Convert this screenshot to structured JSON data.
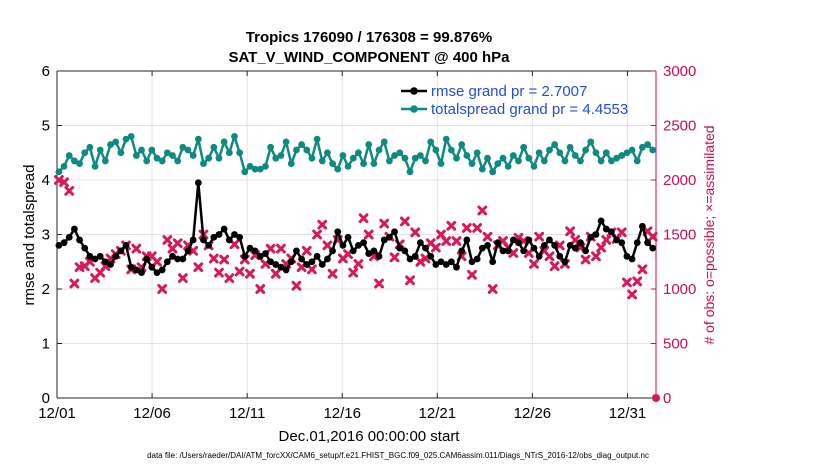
{
  "chart_data": {
    "type": "line",
    "title": "Tropics 176090 / 176308 = 99.876%",
    "subtitle": "SAT_V_WIND_COMPONENT @ 400 hPa",
    "xlabel": "Dec.01,2016 00:00:00 start",
    "ylabel": "rmse and totalspread",
    "ylabel_right": "# of obs: o=possible; ×=assimilated",
    "footer": "data file: /Users/raeder/DAI/ATM_forcXX/CAM6_setup/f.e21.FHIST_BGC.f09_025.CAM6assim.011/Diags_NTrS_2016-12/obs_diag_output.nc",
    "xlim": [
      0,
      31.5
    ],
    "ylim": [
      0,
      6
    ],
    "ylim_right": [
      0,
      3000
    ],
    "grid": true,
    "x_tick_positions": [
      0,
      5,
      10,
      15,
      20,
      25,
      30
    ],
    "x_tick_labels": [
      "12/01",
      "12/06",
      "12/11",
      "12/16",
      "12/21",
      "12/26",
      "12/31"
    ],
    "y_ticks": [
      "0",
      "1",
      "2",
      "3",
      "4",
      "5",
      "6"
    ],
    "y_ticks_right": [
      "0",
      "500",
      "1000",
      "1500",
      "2000",
      "2500",
      "3000"
    ],
    "legend": [
      {
        "label": "rmse grand pr = 2.7007",
        "color": "#000000"
      },
      {
        "label": "totalspread grand pr = 4.4553",
        "color": "#0f8a80"
      }
    ],
    "series": [
      {
        "name": "rmse",
        "color": "#000000",
        "values": [
          2.8,
          2.85,
          2.95,
          3.1,
          2.9,
          2.75,
          2.6,
          2.55,
          2.6,
          2.5,
          2.45,
          2.6,
          2.7,
          2.8,
          2.4,
          2.35,
          2.3,
          2.55,
          2.4,
          2.3,
          2.35,
          2.5,
          2.6,
          2.55,
          2.55,
          2.7,
          2.9,
          3.95,
          2.9,
          2.8,
          2.95,
          3.0,
          3.1,
          2.9,
          3.0,
          2.95,
          2.6,
          2.75,
          2.7,
          2.6,
          2.65,
          2.5,
          2.45,
          2.4,
          2.35,
          2.5,
          2.7,
          2.55,
          2.45,
          2.5,
          2.6,
          2.45,
          2.55,
          2.7,
          3.05,
          2.8,
          2.95,
          2.7,
          2.8,
          2.85,
          2.65,
          2.7,
          2.6,
          2.9,
          2.95,
          3.05,
          2.75,
          2.7,
          2.55,
          2.6,
          2.85,
          2.75,
          2.6,
          2.45,
          2.5,
          2.45,
          2.5,
          2.4,
          2.7,
          2.9,
          2.5,
          2.55,
          2.75,
          2.8,
          2.5,
          2.85,
          2.7,
          2.7,
          2.9,
          2.85,
          2.7,
          2.9,
          2.75,
          2.6,
          2.8,
          2.9,
          2.8,
          2.6,
          2.5,
          2.8,
          2.75,
          2.85,
          2.7,
          2.95,
          3.0,
          3.25,
          3.1,
          3.05,
          2.9,
          2.85,
          2.6,
          2.55,
          2.85,
          3.15,
          2.85,
          2.75
        ]
      },
      {
        "name": "totalspread",
        "color": "#0f8a80",
        "values": [
          4.15,
          4.25,
          4.45,
          4.35,
          4.3,
          4.5,
          4.6,
          4.25,
          4.55,
          4.35,
          4.65,
          4.7,
          4.5,
          4.75,
          4.8,
          4.45,
          4.55,
          4.35,
          4.55,
          4.4,
          4.35,
          4.5,
          4.45,
          4.35,
          4.6,
          4.55,
          4.45,
          4.75,
          4.3,
          4.4,
          4.6,
          4.4,
          4.7,
          4.5,
          4.8,
          4.5,
          4.15,
          4.25,
          4.2,
          4.2,
          4.25,
          4.6,
          4.4,
          4.45,
          4.7,
          4.3,
          4.55,
          4.65,
          4.55,
          4.4,
          4.75,
          4.35,
          4.5,
          4.3,
          4.2,
          4.45,
          4.25,
          4.4,
          4.5,
          4.3,
          4.65,
          4.3,
          4.55,
          4.7,
          4.35,
          4.45,
          4.5,
          4.4,
          4.15,
          4.4,
          4.45,
          4.35,
          4.7,
          4.55,
          4.3,
          4.75,
          4.55,
          4.4,
          4.65,
          4.45,
          4.3,
          4.5,
          4.2,
          4.4,
          4.15,
          4.3,
          4.4,
          4.25,
          4.45,
          4.35,
          4.6,
          4.4,
          4.25,
          4.5,
          4.35,
          4.55,
          4.65,
          4.5,
          4.35,
          4.6,
          4.45,
          4.35,
          4.55,
          4.7,
          4.5,
          4.35,
          4.5,
          4.35,
          4.4,
          4.45,
          4.5,
          4.55,
          4.35,
          4.6,
          4.65,
          4.55
        ]
      },
      {
        "name": "assimilated",
        "axis": "right",
        "color": "#d6195c",
        "values": [
          2000,
          1980,
          1900,
          1050,
          1200,
          1210,
          1250,
          1100,
          1150,
          1210,
          1280,
          1320,
          1350,
          1400,
          1180,
          1370,
          1200,
          1300,
          1300,
          1250,
          1000,
          1450,
          1370,
          1420,
          1100,
          1400,
          1350,
          1200,
          1500,
          1400,
          1280,
          1150,
          1270,
          1100,
          1410,
          1160,
          1270,
          1140,
          1310,
          1000,
          1230,
          1370,
          1140,
          1370,
          1230,
          1280,
          1030,
          1200,
          1350,
          1180,
          1500,
          1590,
          1400,
          1140,
          1450,
          1280,
          1320,
          1150,
          1230,
          1650,
          1500,
          1300,
          1050,
          1600,
          1480,
          1290,
          1410,
          1620,
          1080,
          1520,
          1250,
          1280,
          1420,
          1380,
          1500,
          1440,
          1580,
          1440,
          1300,
          1560,
          1130,
          1560,
          1720,
          1480,
          1000,
          1400,
          1440,
          1380,
          1330,
          1470,
          1440,
          1330,
          1230,
          1480,
          1350,
          1300,
          1210,
          1400,
          1230,
          1530,
          1450,
          1380,
          1270,
          1480,
          1300,
          1380,
          1450,
          1520,
          1460,
          1520,
          1060,
          950,
          1070,
          1180,
          1530,
          1480
        ]
      }
    ]
  }
}
